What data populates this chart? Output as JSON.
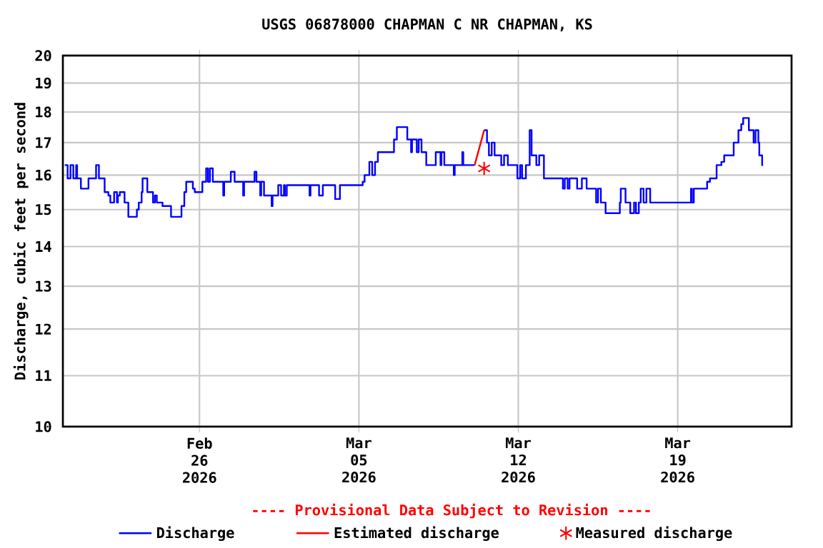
{
  "chart_data": {
    "type": "step",
    "title": "USGS 06878000 CHAPMAN C NR CHAPMAN, KS",
    "ylabel": "Discharge, cubic feet per second",
    "log": "y",
    "grid": true,
    "legend": "bottom",
    "annotations": [
      "---- Provisional Data Subject to Revision ----"
    ],
    "xlim": [
      "2026-02-20",
      "2026-03-24"
    ],
    "xticks": [
      {
        "value": "2026-02-26",
        "label": "Feb 26 2026"
      },
      {
        "value": "2026-03-05",
        "label": "Mar 05 2026"
      },
      {
        "value": "2026-03-12",
        "label": "Mar 12 2026"
      },
      {
        "value": "2026-03-19",
        "label": "Mar 19 2026"
      }
    ],
    "ylim": [
      10,
      20
    ],
    "yticks": [
      10,
      11,
      12,
      13,
      14,
      15,
      16,
      17,
      18,
      19,
      20
    ],
    "series": [
      {
        "name": "Discharge",
        "color": "#0000ff",
        "x": [
          "2026-02-20T02:00",
          "2026-02-20T05:00",
          "2026-02-20T08:00",
          "2026-02-20T11:00",
          "2026-02-20T14:00",
          "2026-02-20T15:00",
          "2026-02-20T19:00",
          "2026-02-21T03:00",
          "2026-02-21T11:00",
          "2026-02-21T14:00",
          "2026-02-21T20:00",
          "2026-02-22T00:00",
          "2026-02-22T02:00",
          "2026-02-22T06:00",
          "2026-02-22T09:00",
          "2026-02-22T10:00",
          "2026-02-22T12:00",
          "2026-02-22T17:00",
          "2026-02-22T21:00",
          "2026-02-23T06:00",
          "2026-02-23T08:00",
          "2026-02-23T11:00",
          "2026-02-23T12:00",
          "2026-02-23T17:00",
          "2026-02-23T23:00",
          "2026-02-24T01:00",
          "2026-02-24T03:00",
          "2026-02-24T09:00",
          "2026-02-24T18:00",
          "2026-02-25T05:00",
          "2026-02-25T08:00",
          "2026-02-25T10:00",
          "2026-02-25T17:00",
          "2026-02-25T19:00",
          "2026-02-26T03:00",
          "2026-02-26T07:00",
          "2026-02-26T09:00",
          "2026-02-26T11:00",
          "2026-02-26T14:00",
          "2026-02-27T01:00",
          "2026-02-27T02:00",
          "2026-02-27T09:00",
          "2026-02-27T13:00",
          "2026-02-27T22:00",
          "2026-02-27T23:00",
          "2026-02-28T10:00",
          "2026-02-28T12:00",
          "2026-02-28T16:00",
          "2026-02-28T17:00",
          "2026-02-28T20:00",
          "2026-03-01T04:00",
          "2026-03-01T05:00",
          "2026-03-01T11:00",
          "2026-03-01T14:00",
          "2026-03-01T17:00",
          "2026-03-01T18:00",
          "2026-03-01T20:00",
          "2026-03-02T20:00",
          "2026-03-02T21:00",
          "2026-03-03T06:00",
          "2026-03-03T10:00",
          "2026-03-03T23:00",
          "2026-03-04T04:00",
          "2026-03-05T04:00",
          "2026-03-05T06:00",
          "2026-03-05T11:00",
          "2026-03-05T14:00",
          "2026-03-05T17:00",
          "2026-03-05T20:00",
          "2026-03-06T13:00",
          "2026-03-06T16:00",
          "2026-03-07T03:00",
          "2026-03-07T07:00",
          "2026-03-07T08:00",
          "2026-03-07T13:00",
          "2026-03-07T15:00",
          "2026-03-07T18:00",
          "2026-03-07T23:00",
          "2026-03-08T09:00",
          "2026-03-08T14:00",
          "2026-03-08T15:00",
          "2026-03-08T18:00",
          "2026-03-09T04:00",
          "2026-03-09T05:00",
          "2026-03-09T13:00",
          "2026-03-09T14:00",
          "2026-03-10T02:00",
          "2026-03-10T03:00",
          "2026-03-10T12:00",
          "2026-03-10T15:00",
          "2026-03-10T17:00",
          "2026-03-10T20:00",
          "2026-03-10T23:00",
          "2026-03-11T06:00",
          "2026-03-11T09:00",
          "2026-03-11T13:00",
          "2026-03-11T23:00",
          "2026-03-12T02:00",
          "2026-03-12T04:00",
          "2026-03-12T08:00",
          "2026-03-12T12:00",
          "2026-03-12T14:00",
          "2026-03-12T19:00",
          "2026-03-12T22:00",
          "2026-03-13T03:00",
          "2026-03-13T23:00",
          "2026-03-14T01:00",
          "2026-03-14T04:00",
          "2026-03-14T06:00",
          "2026-03-14T14:00",
          "2026-03-14T19:00",
          "2026-03-15T00:00",
          "2026-03-15T10:00",
          "2026-03-15T12:00",
          "2026-03-15T15:00",
          "2026-03-15T20:00",
          "2026-03-16T11:00",
          "2026-03-16T12:00",
          "2026-03-16T17:00",
          "2026-03-16T22:00",
          "2026-03-17T02:00",
          "2026-03-17T04:00",
          "2026-03-17T07:00",
          "2026-03-17T09:00",
          "2026-03-17T12:00",
          "2026-03-17T15:00",
          "2026-03-17T19:00",
          "2026-03-19T14:00",
          "2026-03-19T15:00",
          "2026-03-19T17:00",
          "2026-03-20T07:00",
          "2026-03-20T10:00",
          "2026-03-20T17:00",
          "2026-03-20T22:00",
          "2026-03-21T01:00",
          "2026-03-21T11:00",
          "2026-03-21T16:00",
          "2026-03-21T19:00",
          "2026-03-21T21:00",
          "2026-03-22T03:00",
          "2026-03-22T08:00",
          "2026-03-22T10:00",
          "2026-03-22T13:00",
          "2026-03-22T14:00",
          "2026-03-22T17:00",
          "2026-03-22T18:00"
        ],
        "values": [
          16.3,
          15.9,
          16.3,
          15.9,
          16.3,
          15.9,
          15.6,
          15.9,
          16.3,
          15.9,
          15.5,
          15.4,
          15.2,
          15.5,
          15.2,
          15.4,
          15.5,
          15.2,
          14.8,
          15.0,
          15.2,
          15.5,
          15.9,
          15.5,
          15.2,
          15.4,
          15.2,
          15.1,
          14.8,
          15.1,
          15.5,
          15.8,
          15.6,
          15.5,
          15.8,
          16.2,
          15.8,
          16.2,
          15.8,
          15.4,
          15.8,
          16.1,
          15.8,
          15.4,
          15.8,
          16.1,
          15.8,
          15.4,
          15.8,
          15.4,
          15.1,
          15.4,
          15.7,
          15.4,
          15.7,
          15.4,
          15.7,
          15.4,
          15.7,
          15.4,
          15.7,
          15.3,
          15.7,
          15.8,
          16.0,
          16.4,
          16.0,
          16.4,
          16.7,
          17.1,
          17.5,
          17.1,
          16.7,
          17.1,
          16.7,
          17.1,
          16.7,
          16.3,
          16.7,
          16.3,
          16.7,
          16.3,
          16.0,
          16.3,
          16.7,
          16.3,
          16.3,
          null,
          17.4,
          17.0,
          16.6,
          17.0,
          16.6,
          16.3,
          16.6,
          16.3,
          15.9,
          16.3,
          15.9,
          16.3,
          17.4,
          16.6,
          16.3,
          16.6,
          15.9,
          15.6,
          15.9,
          15.6,
          15.9,
          15.6,
          15.9,
          15.6,
          15.2,
          15.6,
          15.2,
          14.9,
          15.2,
          15.6,
          15.2,
          14.9,
          15.2,
          14.9,
          15.2,
          15.6,
          15.2,
          15.6,
          15.2,
          15.6,
          15.2,
          15.6,
          15.8,
          15.9,
          16.3,
          16.4,
          16.6,
          17.0,
          17.4,
          17.6,
          17.8,
          17.4,
          17.0,
          17.4,
          17.0,
          16.6,
          16.3,
          16.3
        ]
      },
      {
        "name": "Estimated discharge",
        "type": "line",
        "color": "#ff0000",
        "x": [
          "2026-03-10T02:00",
          "2026-03-10T12:00"
        ],
        "values": [
          16.3,
          17.4
        ]
      },
      {
        "name": "Measured discharge",
        "type": "scatter",
        "color": "#ff0000",
        "marker": "cross",
        "x": [
          "2026-03-10T12:00"
        ],
        "values": [
          16.2
        ]
      }
    ]
  }
}
